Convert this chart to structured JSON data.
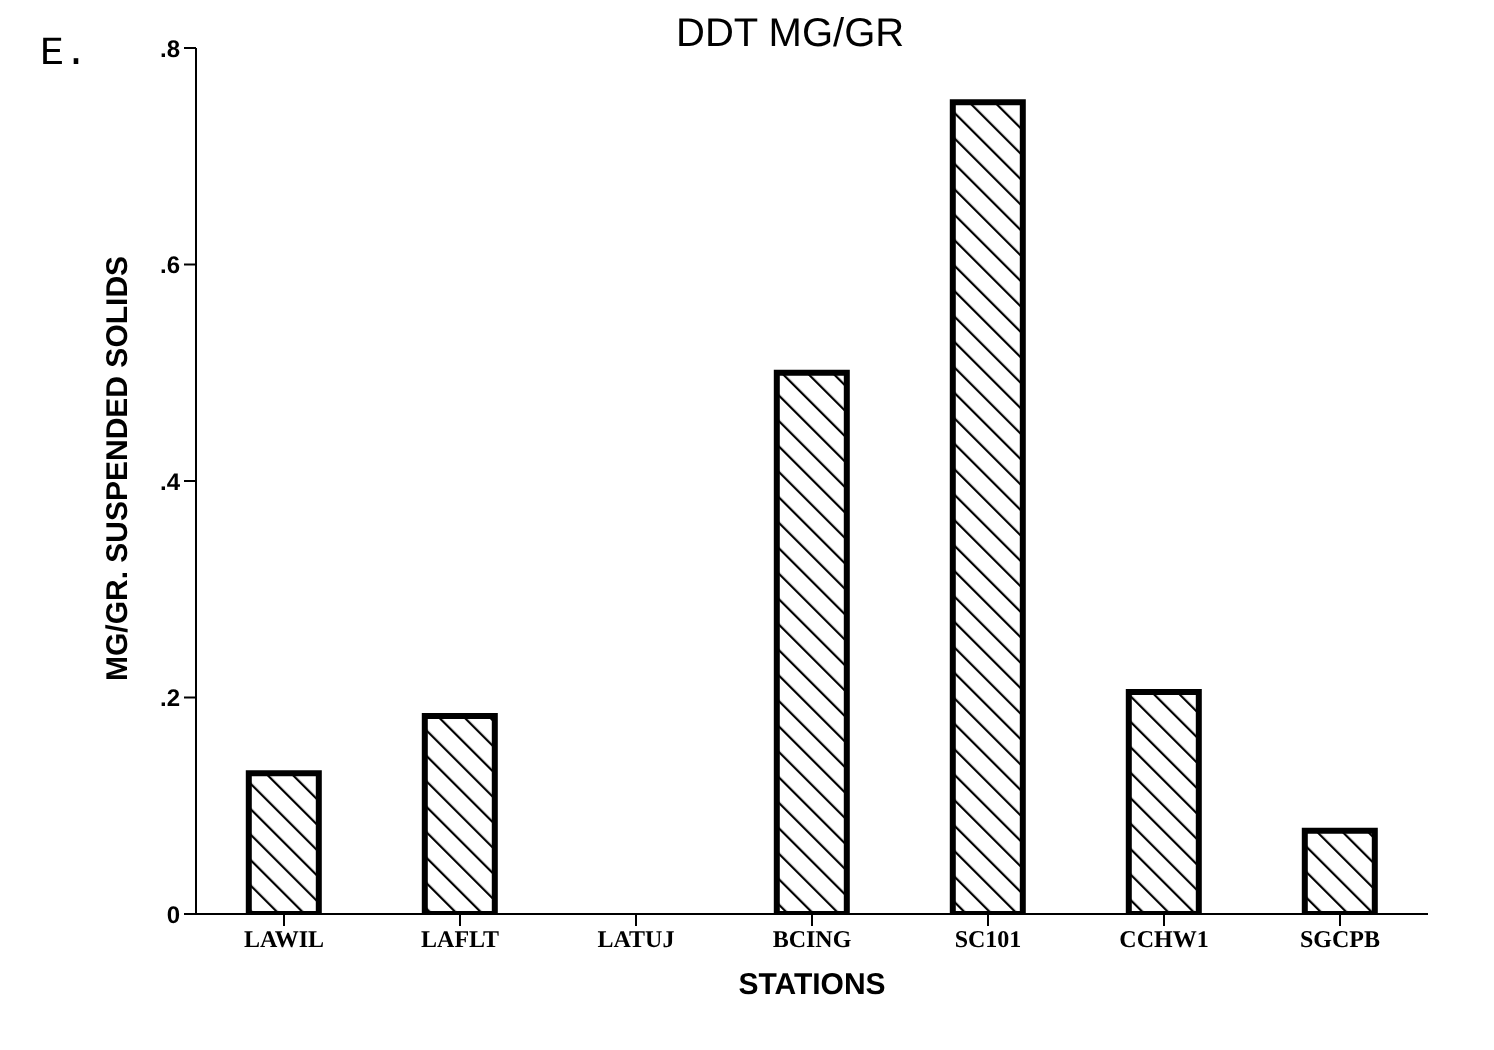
{
  "chart_data": {
    "type": "bar",
    "title": "DDT MG/GR",
    "annotations": [
      "E."
    ],
    "xlabel": "STATIONS",
    "ylabel": "MG/GR. SUSPENDED SOLIDS",
    "categories": [
      "LAWIL",
      "LAFLT",
      "LATUJ",
      "BCING",
      "SC101",
      "CCHW1",
      "SGCPB"
    ],
    "values": [
      0.13,
      0.183,
      0,
      0.5,
      0.75,
      0.205,
      0.077
    ],
    "color": "#000000",
    "ylim": [
      0,
      0.8
    ],
    "yticks": [
      0,
      {
        "value": 0.2,
        "label": ".2"
      },
      {
        "value": 0.4,
        "label": ".4"
      },
      {
        "value": 0.6,
        "label": ".6"
      },
      {
        "value": 0.8,
        "label": ".8"
      }
    ],
    "grid": false
  }
}
